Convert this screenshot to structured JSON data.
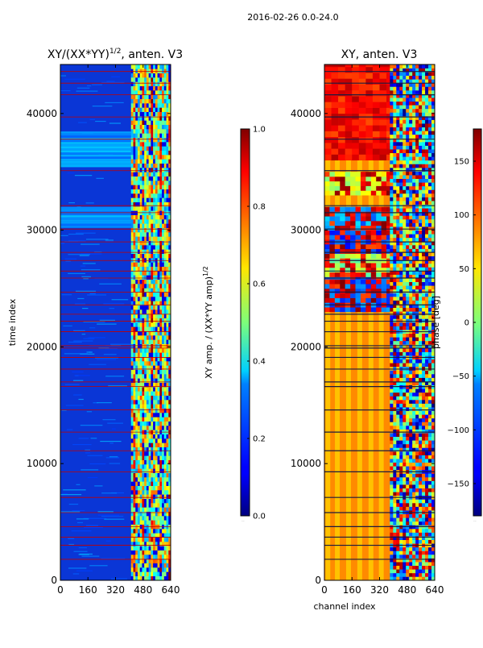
{
  "suptitle": "2016-02-26 0.0-24.0",
  "chart_data": [
    {
      "type": "heatmap",
      "title": "XY/(XX*YY)^{1/2}, anten. V3",
      "title_prefix": "XY/(XX*YY)",
      "title_exponent": "1/2",
      "title_suffix": ", anten. V3",
      "xlabel": "",
      "ylabel": "time index",
      "xlim": [
        0,
        640
      ],
      "ylim": [
        0,
        44200
      ],
      "xticks": [
        0,
        160,
        320,
        480,
        640
      ],
      "yticks": [
        0,
        10000,
        20000,
        30000,
        40000
      ],
      "colormap": "jet",
      "colorbar": {
        "label": "XY amp. / (XX*YY amp)^{1/2}",
        "label_prefix": "XY amp. / (XX*YY amp)",
        "label_exponent": "1/2",
        "range": [
          0.0,
          1.0
        ],
        "ticks": [
          "0.0",
          "0.2",
          "0.4",
          "0.6",
          "0.8",
          "1.0"
        ],
        "tick_values": [
          0.0,
          0.2,
          0.4,
          0.6,
          0.8,
          1.0
        ],
        "footnote": "......"
      },
      "description_regions": [
        {
          "x": [
            0,
            410
          ],
          "y": [
            0,
            44200
          ],
          "value": 0.18
        },
        {
          "x": [
            410,
            640
          ],
          "y": [
            0,
            44200
          ],
          "value": 0.55
        }
      ],
      "flagged_rows": [
        1800,
        3000,
        3700,
        4600,
        5800,
        7100,
        9300,
        11100,
        12700,
        14600,
        16600,
        17000,
        18100,
        19100,
        19900,
        20100,
        21300,
        22200,
        22800,
        23600,
        24700,
        25900,
        26500,
        27400,
        28100,
        29000,
        30100,
        31500,
        32100,
        35100,
        37800,
        39700,
        41600,
        42600,
        43600
      ]
    },
    {
      "type": "heatmap",
      "title": "XY, anten. V3",
      "xlabel": "channel index",
      "ylabel": "",
      "xlim": [
        0,
        640
      ],
      "ylim": [
        0,
        44200
      ],
      "xticks": [
        0,
        160,
        320,
        480,
        640
      ],
      "yticks": [
        0,
        10000,
        20000,
        30000,
        40000
      ],
      "colormap": "jet",
      "colorbar": {
        "label": "phase [deg]",
        "range": [
          -180,
          180
        ],
        "ticks": [
          "−150",
          "−100",
          "−50",
          "0",
          "50",
          "100",
          "150"
        ],
        "tick_values": [
          -150,
          -100,
          -50,
          0,
          50,
          100,
          150
        ],
        "footnote": "......"
      },
      "vertical_band_channels": [
        20,
        75,
        140,
        205,
        270,
        330
      ],
      "flagged_rows": [
        1800,
        3000,
        3700,
        4600,
        5800,
        7100,
        9300,
        11100,
        12700,
        14600,
        16600,
        17000,
        18100,
        19100,
        19900,
        20100,
        21300,
        22200,
        22800,
        23600,
        24700,
        25900,
        26500,
        27400,
        28100,
        29000,
        30100,
        31500,
        32100,
        35100,
        37800,
        39700,
        41600,
        42600,
        43600
      ]
    }
  ]
}
